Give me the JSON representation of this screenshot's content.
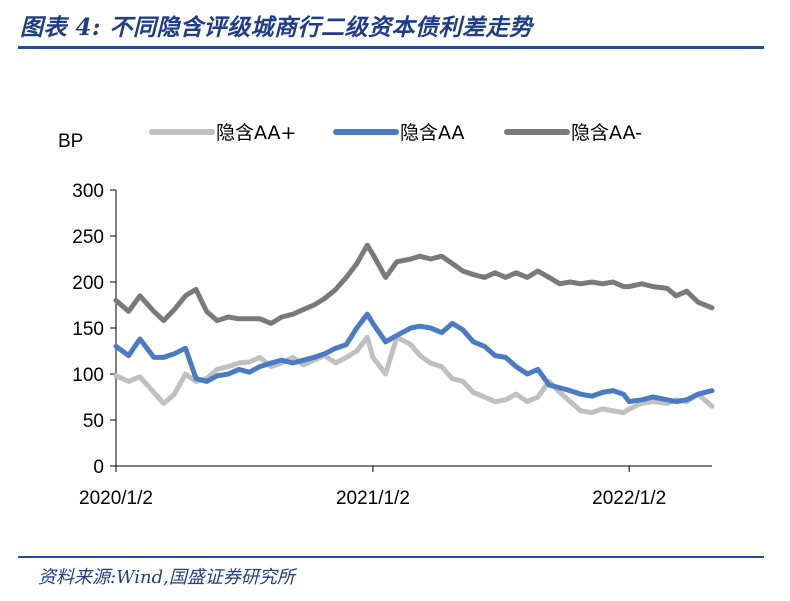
{
  "header": {
    "title": "图表 4:  不同隐含评级城商行二级资本债利差走势"
  },
  "footer": {
    "source": "资料来源:Wind,国盛证券研究所"
  },
  "chart_data": {
    "type": "line",
    "title": "图表 4:  不同隐含评级城商行二级资本债利差走势",
    "ylabel": "BP",
    "xlabel": "",
    "ylim": [
      0,
      300
    ],
    "yticks": [
      0,
      50,
      100,
      150,
      200,
      250,
      300
    ],
    "xticks": [
      "2020/1/2",
      "2021/1/2",
      "2022/1/2"
    ],
    "x_range": [
      "2020/1/2",
      "2022/4/30"
    ],
    "grid": false,
    "legend_position": "top",
    "x": [
      "2020/1/2",
      "2020/1/20",
      "2020/2/5",
      "2020/2/25",
      "2020/3/10",
      "2020/3/25",
      "2020/4/10",
      "2020/4/25",
      "2020/5/10",
      "2020/5/25",
      "2020/6/10",
      "2020/6/25",
      "2020/7/10",
      "2020/7/25",
      "2020/8/10",
      "2020/8/25",
      "2020/9/10",
      "2020/9/25",
      "2020/10/10",
      "2020/10/25",
      "2020/11/10",
      "2020/11/25",
      "2020/12/10",
      "2020/12/25",
      "2021/1/2",
      "2021/1/20",
      "2021/2/5",
      "2021/2/25",
      "2021/3/10",
      "2021/3/25",
      "2021/4/10",
      "2021/4/25",
      "2021/5/10",
      "2021/5/25",
      "2021/6/10",
      "2021/6/25",
      "2021/7/10",
      "2021/7/25",
      "2021/8/10",
      "2021/8/25",
      "2021/9/10",
      "2021/9/25",
      "2021/10/10",
      "2021/10/25",
      "2021/11/10",
      "2021/11/25",
      "2021/12/10",
      "2021/12/25",
      "2022/1/2",
      "2022/1/20",
      "2022/2/5",
      "2022/2/25",
      "2022/3/10",
      "2022/3/25",
      "2022/4/10",
      "2022/4/30"
    ],
    "series": [
      {
        "name": "隐含AA+",
        "color": "#c0c0c0",
        "values": [
          98,
          92,
          97,
          80,
          68,
          78,
          100,
          92,
          95,
          105,
          108,
          112,
          113,
          118,
          108,
          112,
          118,
          110,
          115,
          120,
          112,
          118,
          125,
          140,
          118,
          100,
          140,
          132,
          120,
          112,
          108,
          95,
          92,
          80,
          75,
          70,
          72,
          78,
          70,
          75,
          92,
          80,
          70,
          60,
          58,
          62,
          60,
          58,
          62,
          68,
          70,
          68,
          72,
          70,
          78,
          65
        ]
      },
      {
        "name": "隐含AA",
        "color": "#4a7cc4",
        "values": [
          130,
          120,
          138,
          118,
          118,
          122,
          128,
          95,
          92,
          98,
          100,
          105,
          102,
          108,
          112,
          115,
          112,
          115,
          118,
          122,
          128,
          132,
          150,
          165,
          155,
          135,
          142,
          150,
          152,
          150,
          145,
          155,
          148,
          135,
          130,
          120,
          118,
          108,
          100,
          105,
          88,
          85,
          82,
          78,
          76,
          80,
          82,
          78,
          70,
          72,
          75,
          72,
          70,
          72,
          78,
          82
        ]
      },
      {
        "name": "隐含AA-",
        "color": "#7a7a7a",
        "values": [
          180,
          168,
          185,
          168,
          158,
          170,
          185,
          192,
          168,
          158,
          162,
          160,
          160,
          160,
          155,
          162,
          165,
          170,
          175,
          182,
          192,
          205,
          220,
          240,
          230,
          205,
          222,
          225,
          228,
          225,
          228,
          220,
          212,
          208,
          205,
          210,
          205,
          210,
          205,
          212,
          205,
          198,
          200,
          198,
          200,
          198,
          200,
          195,
          195,
          198,
          195,
          193,
          185,
          190,
          178,
          172
        ]
      }
    ]
  }
}
